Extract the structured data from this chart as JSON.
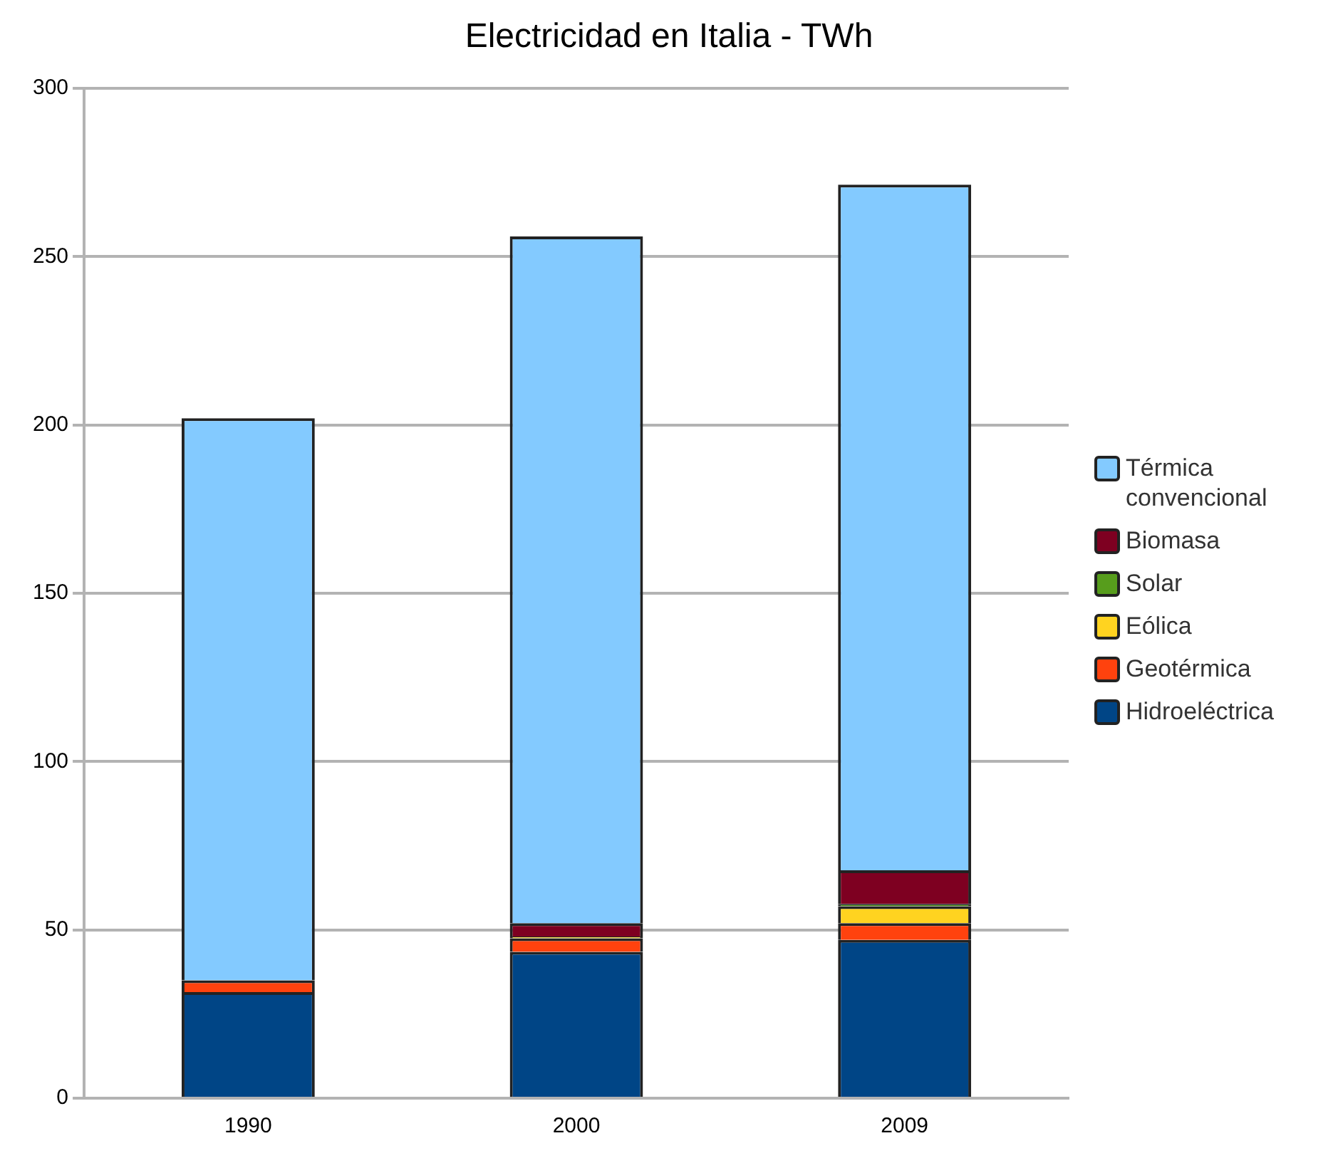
{
  "chart_data": {
    "type": "bar",
    "title": "Electricidad en Italia - TWh",
    "categories": [
      "1990",
      "2000",
      "2009"
    ],
    "stacked": true,
    "ylim": [
      0,
      300
    ],
    "yticks": [
      0,
      50,
      100,
      150,
      200,
      250,
      300
    ],
    "grid": "y",
    "legend": "right",
    "series": [
      {
        "name": "Hidroeléctrica",
        "color": "#004586",
        "values": [
          31.5,
          43.5,
          47
        ]
      },
      {
        "name": "Geotérmica",
        "color": "#ff420e",
        "values": [
          3.5,
          4,
          5
        ]
      },
      {
        "name": "Eólica",
        "color": "#ffd320",
        "values": [
          0,
          0.5,
          5
        ]
      },
      {
        "name": "Solar",
        "color": "#579d1c",
        "values": [
          0,
          0,
          0.7
        ]
      },
      {
        "name": "Biomasa",
        "color": "#7e0021",
        "values": [
          0,
          4,
          10
        ]
      },
      {
        "name": "Térmica convencional",
        "color": "#83caff",
        "values": [
          167,
          204,
          203.7
        ]
      }
    ]
  }
}
